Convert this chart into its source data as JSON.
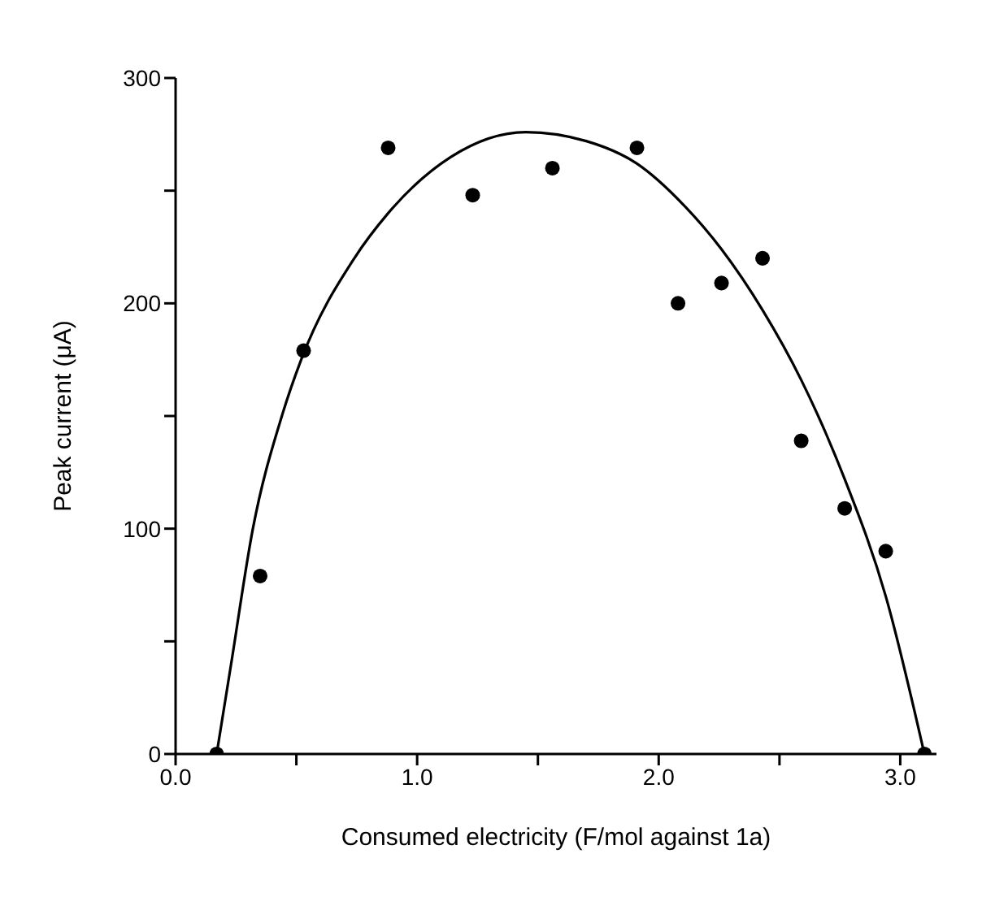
{
  "chart_data": {
    "type": "scatter",
    "xlabel": "Consumed electricity (F/mol against 1a)",
    "ylabel": "Peak current (μA)",
    "xlim": [
      0,
      3.15
    ],
    "xticks": [
      {
        "value": 0,
        "label": "0.0"
      },
      {
        "value": 0.5,
        "label": null
      },
      {
        "value": 1,
        "label": "1.0"
      },
      {
        "value": 1.5,
        "label": null
      },
      {
        "value": 2,
        "label": "2.0"
      },
      {
        "value": 2.5,
        "label": null
      },
      {
        "value": 3,
        "label": "3.0"
      }
    ],
    "ylim": [
      0,
      300
    ],
    "yticks": [
      0,
      {
        "value": 50,
        "label": null
      },
      100,
      {
        "value": 150,
        "label": null
      },
      200,
      {
        "value": 250,
        "label": null
      },
      300
    ],
    "grid": false,
    "legend": false,
    "marker": "circle",
    "series": [
      {
        "type": "scatter",
        "color": "#000000",
        "x": [
          0.17,
          0.35,
          0.53,
          0.88,
          1.23,
          1.56,
          1.91,
          2.08,
          2.26,
          2.43,
          2.59,
          2.77,
          2.94,
          3.1
        ],
        "values": [
          0,
          79,
          179,
          269,
          248,
          260,
          269,
          200,
          209,
          220,
          139,
          109,
          90,
          0
        ]
      },
      {
        "type": "line",
        "color": "#000000",
        "marker": "none",
        "line_style": "solid",
        "x": [
          0.17,
          0.23,
          0.32,
          0.44,
          0.52,
          0.74,
          0.88,
          1.14,
          1.45,
          1.7,
          1.91,
          2.1,
          2.26,
          2.43,
          2.59,
          2.77,
          2.94,
          3.1
        ],
        "values": [
          0,
          40,
          100,
          150,
          175,
          220,
          240,
          265,
          276,
          272,
          262,
          244,
          224,
          197,
          166,
          122,
          70,
          0
        ]
      }
    ]
  }
}
